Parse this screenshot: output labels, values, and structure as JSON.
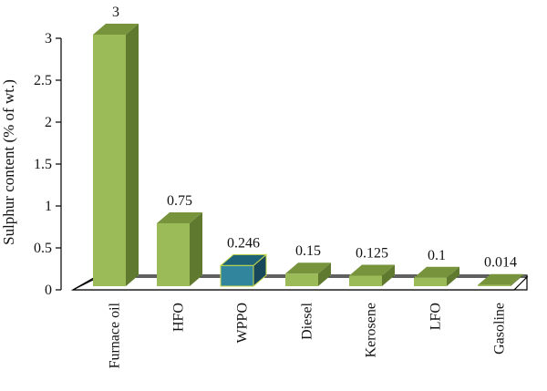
{
  "chart_data": {
    "type": "bar",
    "style": "3d-column",
    "categories": [
      "Furnace oil",
      "HFO",
      "WPPO",
      "Diesel",
      "Kerosene",
      "LFO",
      "Gasoline"
    ],
    "values": [
      3,
      0.75,
      0.246,
      0.15,
      0.125,
      0.1,
      0.014
    ],
    "data_labels": [
      "3",
      "0.75",
      "0.246",
      "0.15",
      "0.125",
      "0.1",
      "0.014"
    ],
    "highlight_index": 2,
    "ylabel": "Sulphur content (% of wt.)",
    "xlabel": "",
    "title": "",
    "ylim": [
      0,
      3
    ],
    "yticks": [
      0,
      0.5,
      1,
      1.5,
      2,
      2.5,
      3
    ],
    "ytick_labels": [
      "0",
      "0.5",
      "1",
      "1.5",
      "2",
      "2.5",
      "3"
    ],
    "grid": false,
    "legend": "none",
    "colors": {
      "bar_front": "#9bbb59",
      "bar_top": "#77933c",
      "bar_side": "#5f7a2f",
      "highlight_front": "#31859c",
      "highlight_top": "#1f6379",
      "highlight_side": "#17475a",
      "highlight_edge": "#c8d84a",
      "floor_stroke": "#000000"
    }
  }
}
